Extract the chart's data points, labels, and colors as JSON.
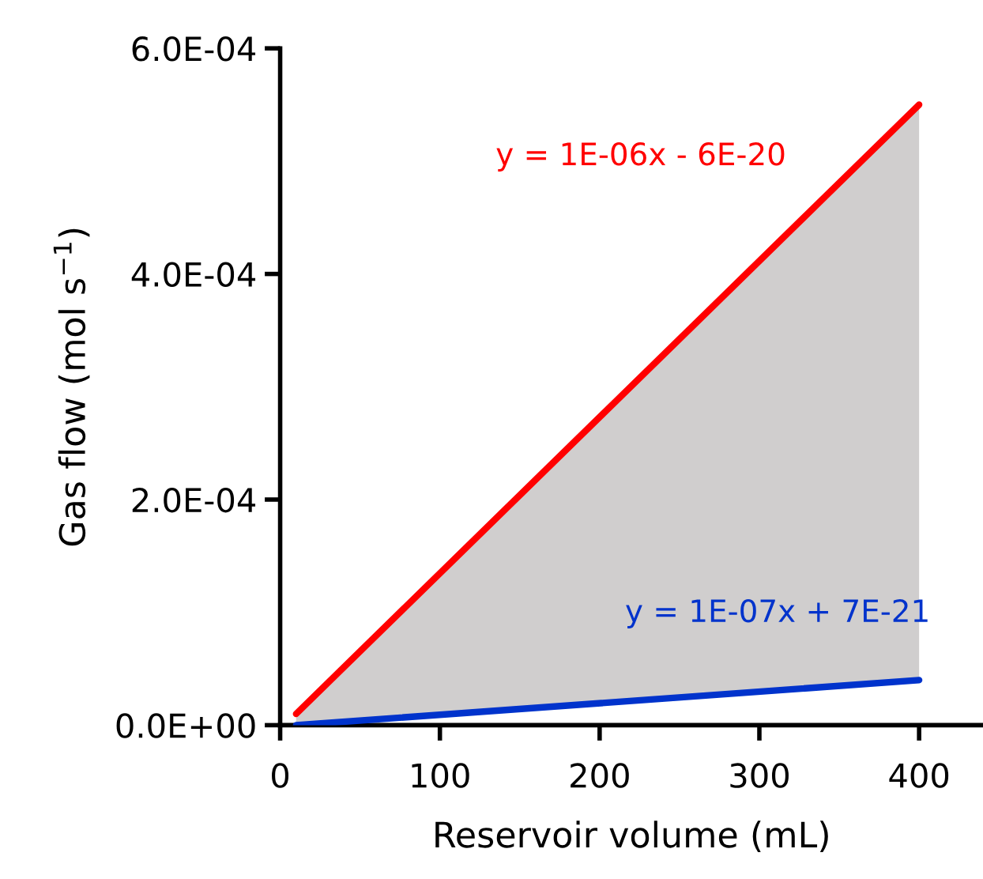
{
  "chart_data": {
    "type": "line",
    "xlabel": "Reservoir volume (mL)",
    "ylabel": "Gas flow (mol s$^{−1}$)",
    "xlim": [
      0,
      440
    ],
    "xticks": [
      0,
      100,
      200,
      300,
      400
    ],
    "ylim": [
      0,
      0.0006
    ],
    "yticks": [
      {
        "value": 0,
        "label": "0.0E+00"
      },
      {
        "value": 0.0002,
        "label": "2.0E-04"
      },
      {
        "value": 0.0004,
        "label": "4.0E-04"
      },
      {
        "value": 0.0006,
        "label": "6.0E-04"
      }
    ],
    "x": [
      10,
      400
    ],
    "series": [
      {
        "color": "#ff0000",
        "values": [
          1e-05,
          0.00055
        ],
        "lower": [
          0,
          4e-05
        ],
        "upper": [
          1e-05,
          0.00055
        ]
      },
      {
        "color": "#0033cc",
        "values": [
          0,
          4e-05
        ]
      }
    ],
    "annotations": [
      "y = 1E-06x - 6E-20",
      "y = 1E-07x + 7E-21"
    ],
    "grid": false,
    "legend": false
  }
}
